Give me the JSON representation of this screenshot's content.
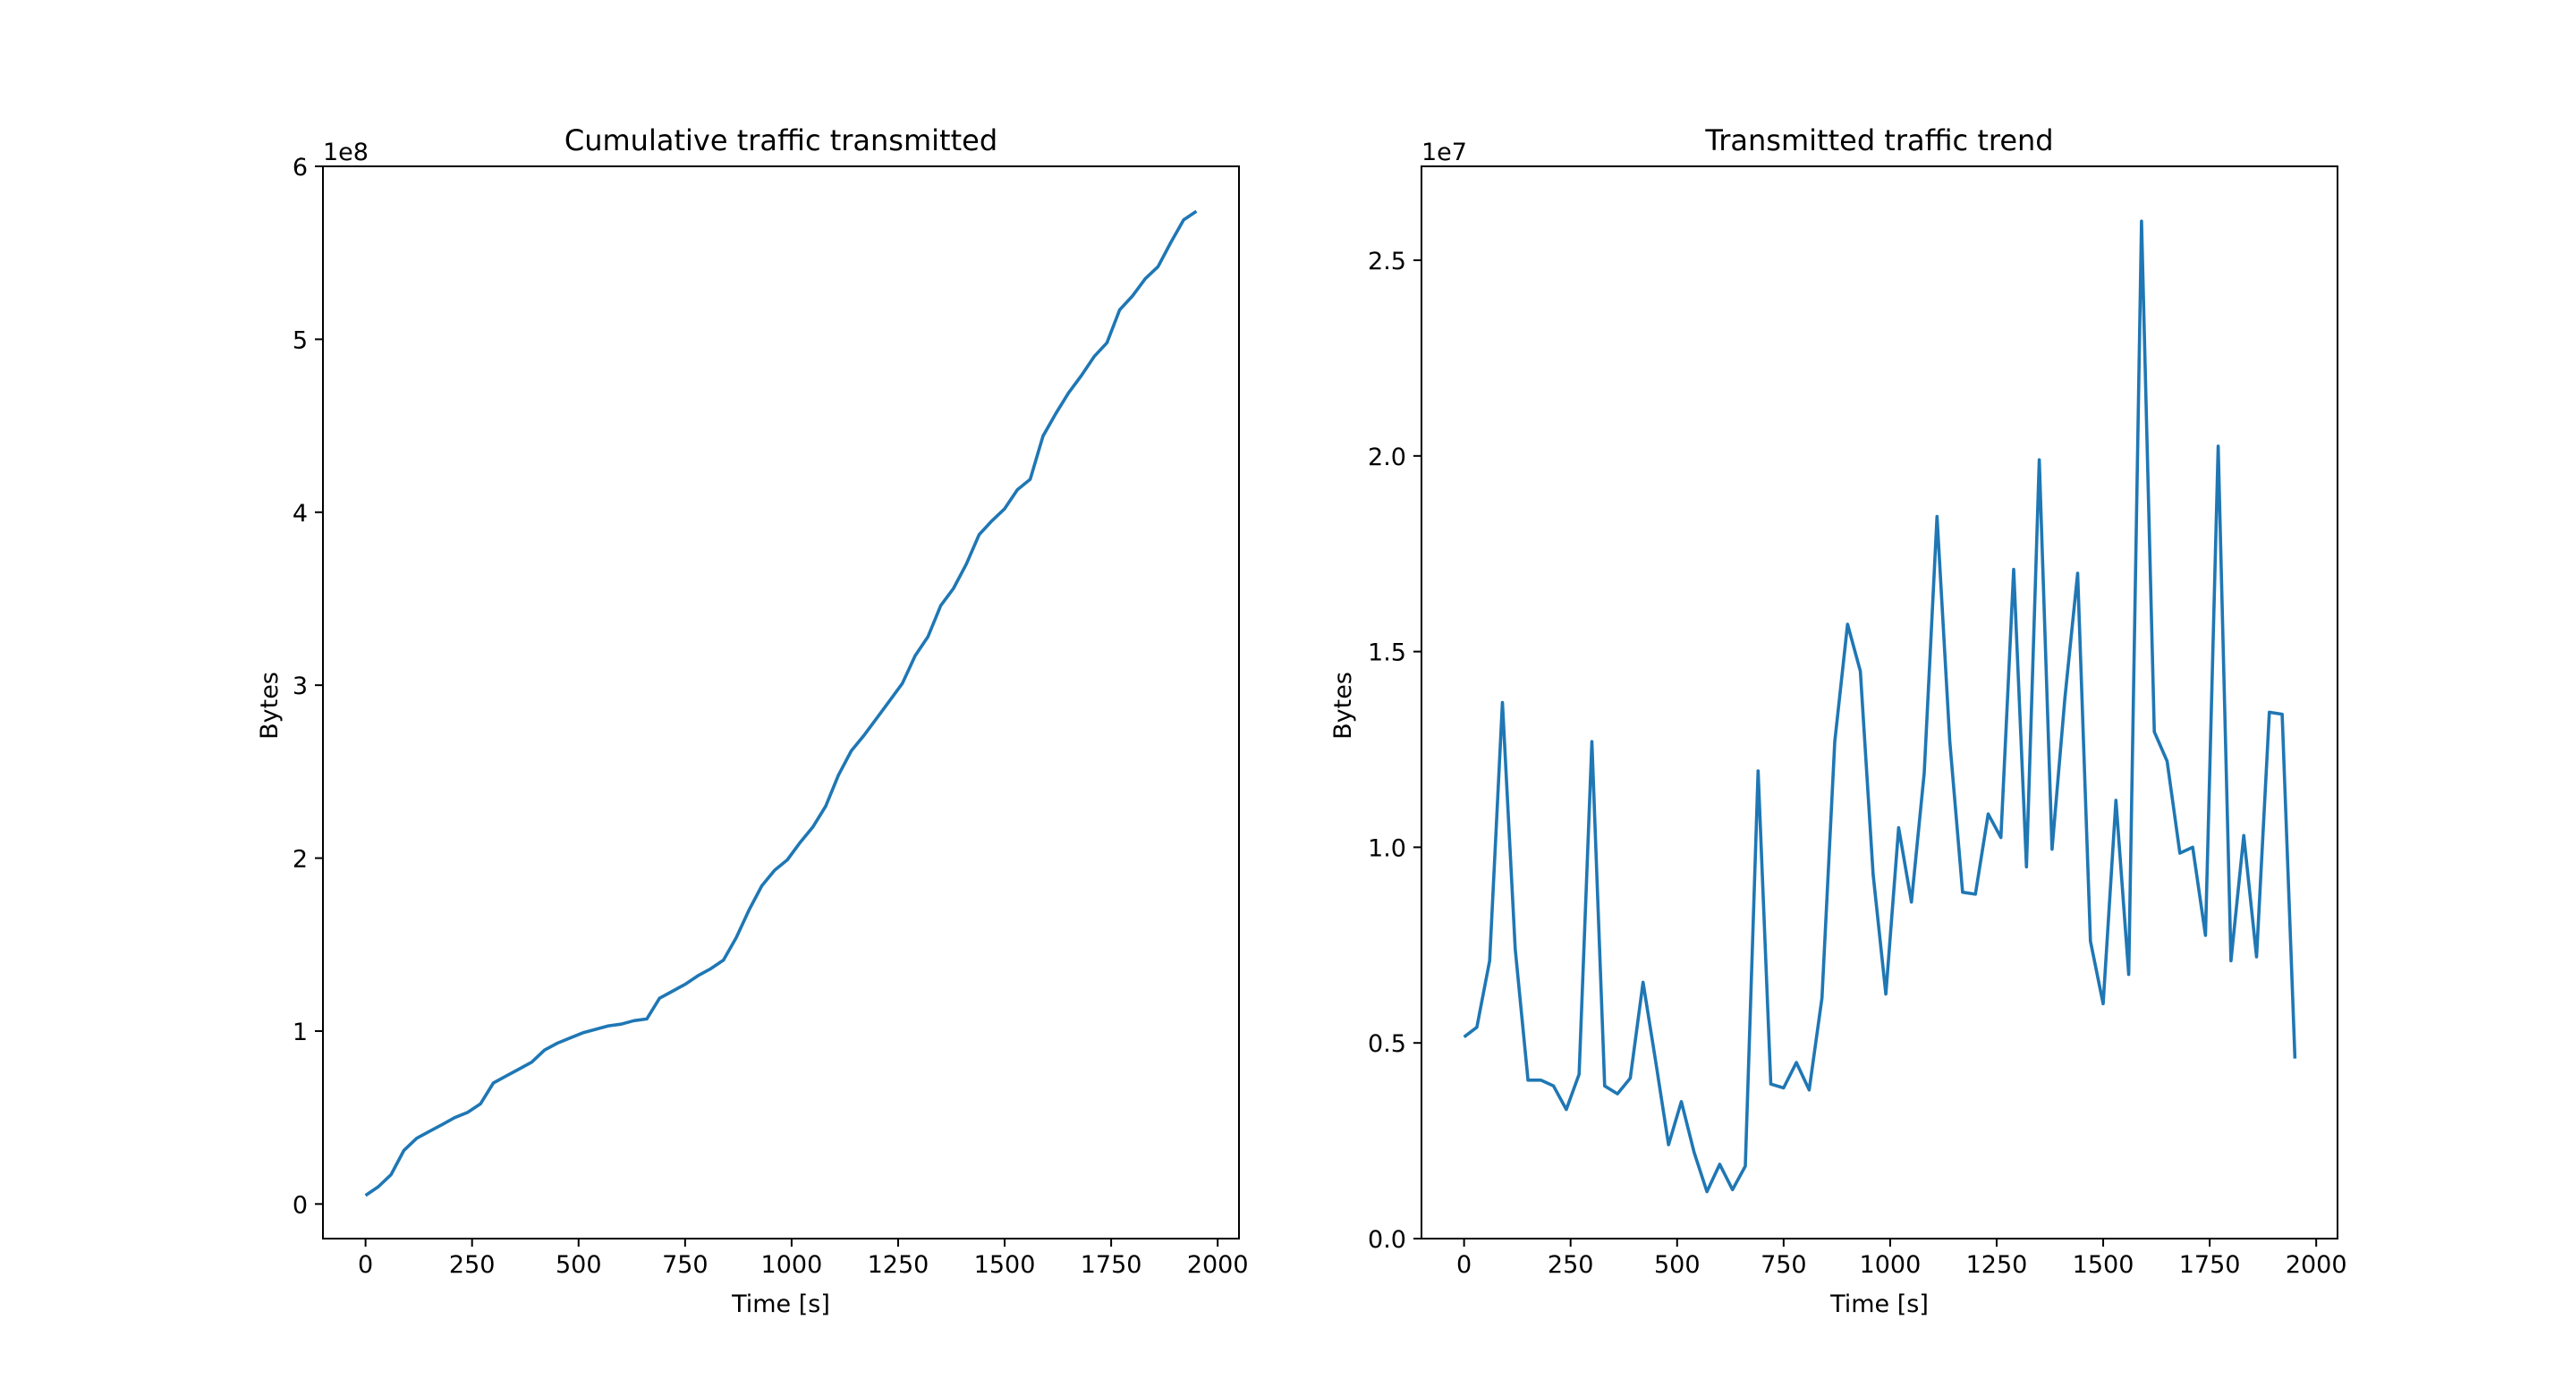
{
  "figure": {
    "background": "#ffffff",
    "line_color": "#1f77b4"
  },
  "chart_data": [
    {
      "type": "line",
      "title": "Cumulative traffic transmitted",
      "xlabel": "Time [s]",
      "ylabel": "Bytes",
      "offset_text": "1e8",
      "xlim": [
        -100,
        2050
      ],
      "ylim": [
        -0.2,
        6.0
      ],
      "xticks": [
        0,
        250,
        500,
        750,
        1000,
        1250,
        1500,
        1750,
        2000
      ],
      "xtick_labels": [
        "0",
        "250",
        "500",
        "750",
        "1000",
        "1250",
        "1500",
        "1750",
        "2000"
      ],
      "yticks": [
        0,
        1,
        2,
        3,
        4,
        5,
        6
      ],
      "ytick_labels": [
        "0",
        "1",
        "2",
        "3",
        "4",
        "5",
        "6"
      ],
      "grid": false,
      "series": [
        {
          "color": "#1f77b4",
          "x": [
            0,
            30,
            60,
            90,
            120,
            150,
            180,
            210,
            240,
            270,
            300,
            330,
            360,
            390,
            420,
            450,
            480,
            510,
            540,
            570,
            600,
            630,
            660,
            690,
            720,
            750,
            780,
            810,
            840,
            870,
            900,
            930,
            960,
            990,
            1020,
            1050,
            1080,
            1110,
            1140,
            1170,
            1200,
            1230,
            1260,
            1290,
            1320,
            1350,
            1380,
            1410,
            1440,
            1470,
            1500,
            1530,
            1560,
            1590,
            1620,
            1650,
            1680,
            1710,
            1740,
            1770,
            1800,
            1830,
            1860,
            1890,
            1920,
            1950
          ],
          "y": [
            0.05,
            0.1,
            0.17,
            0.31,
            0.38,
            0.42,
            0.46,
            0.5,
            0.53,
            0.58,
            0.7,
            0.74,
            0.78,
            0.82,
            0.89,
            0.93,
            0.96,
            0.99,
            1.01,
            1.03,
            1.04,
            1.06,
            1.07,
            1.19,
            1.23,
            1.27,
            1.32,
            1.36,
            1.41,
            1.54,
            1.7,
            1.84,
            1.93,
            1.99,
            2.09,
            2.18,
            2.3,
            2.48,
            2.62,
            2.71,
            2.81,
            2.91,
            3.01,
            3.17,
            3.28,
            3.46,
            3.56,
            3.7,
            3.87,
            3.95,
            4.02,
            4.13,
            4.19,
            4.44,
            4.57,
            4.69,
            4.79,
            4.9,
            4.98,
            5.17,
            5.25,
            5.35,
            5.42,
            5.56,
            5.69,
            5.74
          ]
        }
      ]
    },
    {
      "type": "line",
      "title": "Transmitted traffic trend",
      "xlabel": "Time [s]",
      "ylabel": "Bytes",
      "offset_text": "1e7",
      "xlim": [
        -100,
        2050
      ],
      "ylim": [
        0.0,
        2.74
      ],
      "xticks": [
        0,
        250,
        500,
        750,
        1000,
        1250,
        1500,
        1750,
        2000
      ],
      "xtick_labels": [
        "0",
        "250",
        "500",
        "750",
        "1000",
        "1250",
        "1500",
        "1750",
        "2000"
      ],
      "yticks": [
        0.0,
        0.5,
        1.0,
        1.5,
        2.0,
        2.5
      ],
      "ytick_labels": [
        "0.0",
        "0.5",
        "1.0",
        "1.5",
        "2.0",
        "2.5"
      ],
      "grid": false,
      "series": [
        {
          "color": "#1f77b4",
          "x": [
            0,
            30,
            60,
            90,
            120,
            150,
            180,
            210,
            240,
            270,
            300,
            330,
            360,
            390,
            420,
            450,
            480,
            510,
            540,
            570,
            600,
            630,
            660,
            690,
            720,
            750,
            780,
            810,
            840,
            870,
            900,
            930,
            960,
            990,
            1020,
            1050,
            1080,
            1110,
            1140,
            1170,
            1200,
            1230,
            1260,
            1290,
            1320,
            1350,
            1380,
            1410,
            1440,
            1470,
            1500,
            1530,
            1560,
            1590,
            1620,
            1650,
            1680,
            1710,
            1740,
            1770,
            1800,
            1830,
            1860,
            1890,
            1920,
            1950
          ],
          "y": [
            0.515,
            0.54,
            0.71,
            1.37,
            0.74,
            0.405,
            0.405,
            0.39,
            0.33,
            0.42,
            1.27,
            0.39,
            0.37,
            0.41,
            0.655,
            0.45,
            0.24,
            0.35,
            0.22,
            0.12,
            0.19,
            0.125,
            0.185,
            1.195,
            0.395,
            0.385,
            0.45,
            0.38,
            0.615,
            1.27,
            1.57,
            1.45,
            0.93,
            0.625,
            1.05,
            0.86,
            1.19,
            1.845,
            1.27,
            0.885,
            0.88,
            1.085,
            1.025,
            1.71,
            0.95,
            1.99,
            0.995,
            1.38,
            1.7,
            0.76,
            0.6,
            1.12,
            0.675,
            2.6,
            1.295,
            1.22,
            0.985,
            1.0,
            0.775,
            2.025,
            0.71,
            1.03,
            0.72,
            1.345,
            1.34,
            0.46
          ]
        }
      ]
    }
  ]
}
